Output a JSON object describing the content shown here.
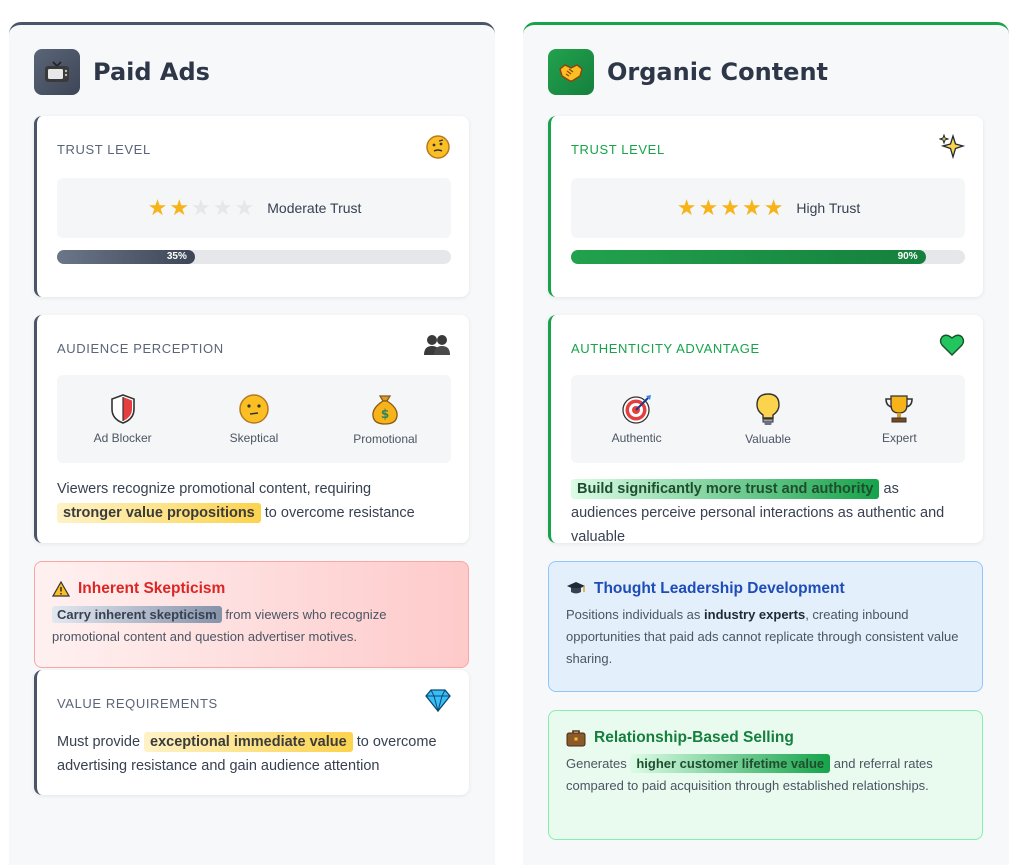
{
  "paid": {
    "title": "Paid Ads",
    "icon": "tv-icon",
    "accent": "#4a5568",
    "trust": {
      "label": "TRUST LEVEL",
      "icon": "thinking-face-icon",
      "stars_filled": 2,
      "stars_total": 5,
      "level_text": "Moderate Trust",
      "percent_label": "35%",
      "percent": 35
    },
    "perception": {
      "label": "AUDIENCE PERCEPTION",
      "icon": "people-icon",
      "items": [
        {
          "icon": "shield-icon",
          "label": "Ad Blocker"
        },
        {
          "icon": "skeptical-face-icon",
          "label": "Skeptical"
        },
        {
          "icon": "money-bag-icon",
          "label": "Promotional"
        }
      ],
      "desc_before": "Viewers recognize promotional content, requiring",
      "desc_highlight": "stronger value propositions",
      "desc_after": "to overcome resistance"
    },
    "skepticism": {
      "title": "Inherent Skepticism",
      "icon": "warning-icon",
      "highlight": "Carry inherent skepticism",
      "body": "from viewers who recognize promotional content and question advertiser motives."
    },
    "value": {
      "label": "VALUE REQUIREMENTS",
      "icon": "gem-icon",
      "desc_before": "Must provide",
      "desc_highlight": "exceptional immediate value",
      "desc_after": "to overcome advertising resistance and gain audience attention"
    }
  },
  "organic": {
    "title": "Organic Content",
    "icon": "handshake-icon",
    "accent": "#16a34a",
    "trust": {
      "label": "TRUST LEVEL",
      "icon": "sparkles-icon",
      "stars_filled": 5,
      "stars_total": 5,
      "level_text": "High Trust",
      "percent_label": "90%",
      "percent": 90
    },
    "authenticity": {
      "label": "AUTHENTICITY ADVANTAGE",
      "icon": "green-heart-icon",
      "items": [
        {
          "icon": "target-icon",
          "label": "Authentic"
        },
        {
          "icon": "lightbulb-icon",
          "label": "Valuable"
        },
        {
          "icon": "trophy-icon",
          "label": "Expert"
        }
      ],
      "desc_highlight": "Build significantly more trust and authority",
      "desc_after": "as audiences perceive personal interactions as authentic and valuable"
    },
    "leadership": {
      "title": "Thought Leadership Development",
      "icon": "graduation-cap-icon",
      "body_before": "Positions individuals as",
      "body_bold": "industry experts",
      "body_after": ", creating inbound opportunities that paid ads cannot replicate through consistent value sharing."
    },
    "relationship": {
      "title": "Relationship-Based Selling",
      "icon": "briefcase-icon",
      "body_before": "Generates",
      "body_highlight": "higher customer lifetime value",
      "body_after": "and referral rates compared to paid acquisition through established relationships."
    }
  }
}
